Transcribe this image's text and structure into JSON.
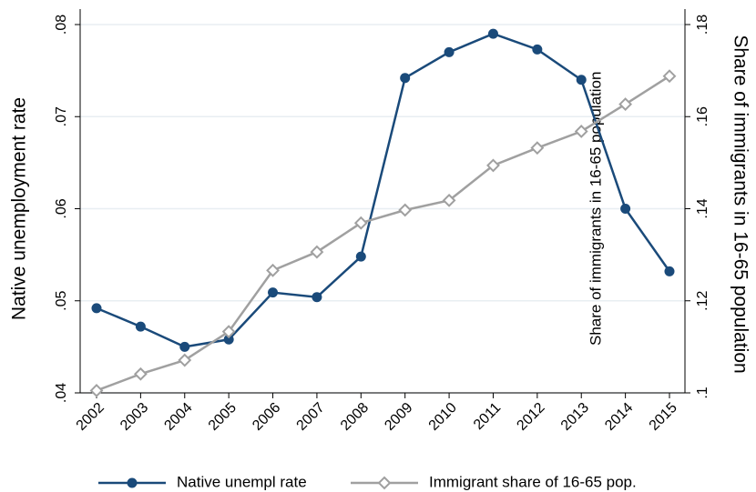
{
  "chart_data": {
    "type": "line",
    "categories": [
      "2002",
      "2003",
      "2004",
      "2005",
      "2006",
      "2007",
      "2008",
      "2009",
      "2010",
      "2011",
      "2012",
      "2013",
      "2014",
      "2015"
    ],
    "ylabel": "Native unemployment rate",
    "y2label": "Share of immigrants in 16-65 population",
    "annotation": "Share of immigrants in 16-65 population",
    "ylim": [
      0.04,
      0.08
    ],
    "yticks": [
      {
        "value": 0.04,
        "label": ".04"
      },
      {
        "value": 0.05,
        "label": ".05"
      },
      {
        "value": 0.06,
        "label": ".06"
      },
      {
        "value": 0.07,
        "label": ".07"
      },
      {
        "value": 0.08,
        "label": ".08"
      }
    ],
    "y2lim": [
      0.1,
      0.18
    ],
    "y2ticks": [
      {
        "value": 0.1,
        "label": ".1"
      },
      {
        "value": 0.12,
        "label": ".12"
      },
      {
        "value": 0.14,
        "label": ".14"
      },
      {
        "value": 0.16,
        "label": ".16"
      },
      {
        "value": 0.18,
        "label": ".18"
      }
    ],
    "grid": true,
    "legend": "bottom",
    "series": [
      {
        "name": "Native unempl rate",
        "color": "#1a4a7a",
        "marker": "circle",
        "axis": "y",
        "values": [
          0.0492,
          0.0472,
          0.045,
          0.0458,
          0.0509,
          0.0504,
          0.0548,
          0.0742,
          0.077,
          0.079,
          0.0773,
          0.074,
          0.06,
          0.0532
        ]
      },
      {
        "name": "Immigrant share of 16-65 pop.",
        "color": "#a0a0a0",
        "marker": "diamond",
        "axis": "y2",
        "values": [
          0.1005,
          0.1041,
          0.1071,
          0.1133,
          0.1266,
          0.1306,
          0.1369,
          0.1397,
          0.1418,
          0.1494,
          0.1532,
          0.1568,
          0.1627,
          0.1688
        ]
      }
    ]
  }
}
